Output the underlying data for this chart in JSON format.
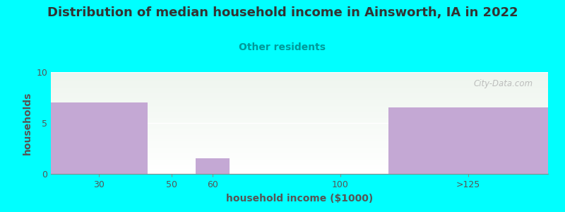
{
  "title": "Distribution of median household income in Ainsworth, IA in 2022",
  "subtitle": "Other residents",
  "xlabel": "household income ($1000)",
  "ylabel": "households",
  "bar_lefts": [
    0,
    2,
    3,
    5,
    7
  ],
  "bar_widths": [
    2,
    1,
    0.7,
    2,
    3.3
  ],
  "bar_heights": [
    7,
    0,
    1.5,
    0,
    6.5
  ],
  "xtick_pos": [
    1,
    2.5,
    3.35,
    6,
    8.65
  ],
  "xtick_labels": [
    "30",
    "50",
    "60",
    "100",
    ">125"
  ],
  "bar_color": "#c4a8d4",
  "ylim": [
    0,
    10
  ],
  "xlim": [
    0,
    10.3
  ],
  "yticks": [
    0,
    5,
    10
  ],
  "background_color": "#00FFFF",
  "plot_bg_top": "#eef5ee",
  "plot_bg_bottom": "#ffffff",
  "title_color": "#333333",
  "subtitle_color": "#009999",
  "axis_label_color": "#555555",
  "tick_color": "#555555",
  "watermark": "City-Data.com",
  "title_fontsize": 13,
  "subtitle_fontsize": 10,
  "label_fontsize": 9
}
